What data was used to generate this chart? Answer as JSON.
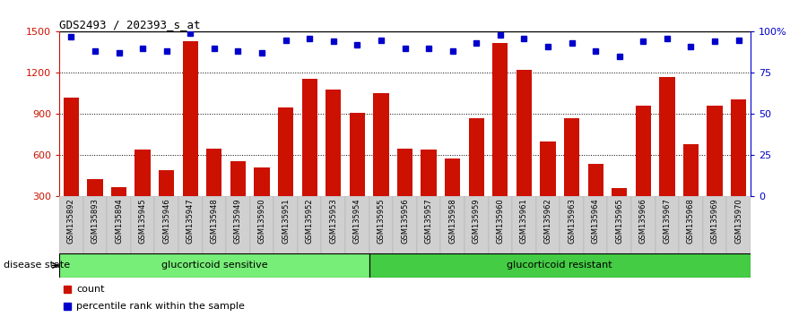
{
  "title": "GDS2493 / 202393_s_at",
  "categories": [
    "GSM135892",
    "GSM135893",
    "GSM135894",
    "GSM135945",
    "GSM135946",
    "GSM135947",
    "GSM135948",
    "GSM135949",
    "GSM135950",
    "GSM135951",
    "GSM135952",
    "GSM135953",
    "GSM135954",
    "GSM135955",
    "GSM135956",
    "GSM135957",
    "GSM135958",
    "GSM135959",
    "GSM135960",
    "GSM135961",
    "GSM135962",
    "GSM135963",
    "GSM135964",
    "GSM135965",
    "GSM135966",
    "GSM135967",
    "GSM135968",
    "GSM135969",
    "GSM135970"
  ],
  "bar_values": [
    1020,
    430,
    370,
    640,
    490,
    1430,
    650,
    560,
    510,
    950,
    1160,
    1080,
    910,
    1050,
    650,
    640,
    580,
    870,
    1420,
    1220,
    700,
    870,
    540,
    360,
    960,
    1170,
    680,
    960,
    1010
  ],
  "percentile_values": [
    97,
    88,
    87,
    90,
    88,
    99,
    90,
    88,
    87,
    95,
    96,
    94,
    92,
    95,
    90,
    90,
    88,
    93,
    98,
    96,
    91,
    93,
    88,
    85,
    94,
    96,
    91,
    94,
    95
  ],
  "group1_label": "glucorticoid sensitive",
  "group1_count": 13,
  "group2_label": "glucorticoid resistant",
  "group2_count": 16,
  "disease_state_label": "disease state",
  "bar_color": "#cc1100",
  "percentile_color": "#0000cc",
  "group1_color": "#77ee77",
  "group2_color": "#44cc44",
  "ylim_left": [
    300,
    1500
  ],
  "ylim_right": [
    0,
    100
  ],
  "yticks_left": [
    300,
    600,
    900,
    1200,
    1500
  ],
  "yticks_right": [
    0,
    25,
    50,
    75,
    100
  ],
  "ytick_right_labels": [
    "0",
    "25",
    "50",
    "75",
    "100%"
  ],
  "legend_count_label": "count",
  "legend_pct_label": "percentile rank within the sample",
  "grid_lines": [
    600,
    900,
    1200
  ]
}
